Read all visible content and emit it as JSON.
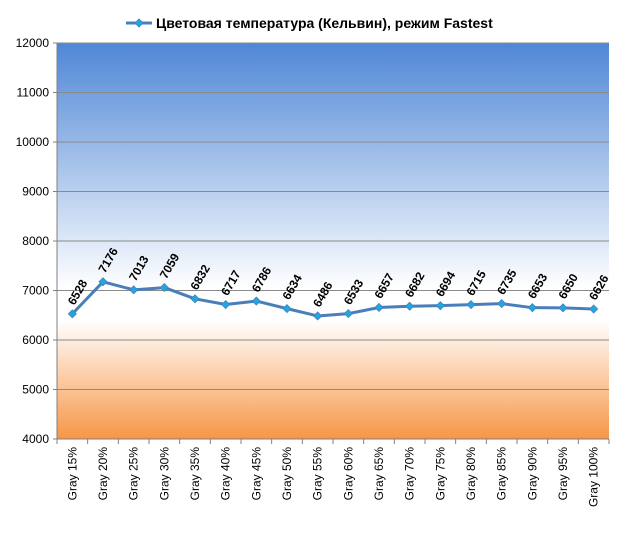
{
  "chart_data": {
    "type": "line",
    "title": "Цветовая температура (Кельвин), режим Fastest",
    "xlabel": "",
    "ylabel": "",
    "ylim": [
      4000,
      12000
    ],
    "yticks": [
      4000,
      5000,
      6000,
      7000,
      8000,
      9000,
      10000,
      11000,
      12000
    ],
    "grid": true,
    "legend_position": "top",
    "categories": [
      "Gray 15%",
      "Gray 20%",
      "Gray 25%",
      "Gray 30%",
      "Gray 35%",
      "Gray 40%",
      "Gray 45%",
      "Gray 50%",
      "Gray 55%",
      "Gray 60%",
      "Gray 65%",
      "Gray 70%",
      "Gray 75%",
      "Gray 80%",
      "Gray 85%",
      "Gray 90%",
      "Gray 95%",
      "Gray 100%"
    ],
    "series": [
      {
        "name": "Цветовая температура (Кельвин), режим Fastest",
        "values": [
          6528,
          7176,
          7013,
          7059,
          6832,
          6717,
          6786,
          6634,
          6486,
          6533,
          6657,
          6682,
          6694,
          6715,
          6735,
          6653,
          6650,
          6626
        ],
        "color": "#4a7ebb",
        "marker_color": "#1fa7e0"
      }
    ],
    "background": {
      "top_color": "#4f87d6",
      "middle_color": "#ffffff",
      "bottom_color": "#f79646"
    }
  }
}
